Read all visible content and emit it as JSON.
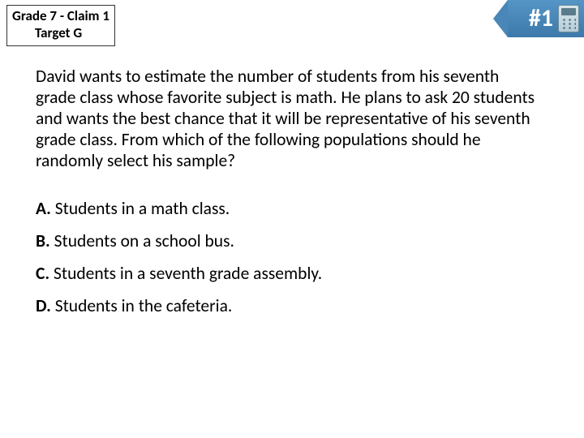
{
  "header": {
    "line1": "Grade 7 - Claim 1",
    "line2": "Target G"
  },
  "badge": {
    "number": "#1"
  },
  "question": "David wants to estimate the number of students from his seventh grade class whose favorite subject is math. He plans to ask 20 students and wants the best chance that it will be representative of his seventh grade class. From which of the following populations should he randomly select his sample?",
  "options": [
    {
      "letter": "A.",
      "text": " Students in a math class."
    },
    {
      "letter": "B.",
      "text": " Students on a school bus."
    },
    {
      "letter": "C.",
      "text": " Students in a seventh grade assembly."
    },
    {
      "letter": "D.",
      "text": " Students in the cafeteria."
    }
  ],
  "colors": {
    "badge_gradient_top": "#5595c6",
    "badge_gradient_bottom": "#3d79ab",
    "background": "#ffffff",
    "text": "#000000"
  },
  "typography": {
    "header_fontsize": 17,
    "body_fontsize": 21.5,
    "badge_fontsize": 30,
    "font_family": "Calibri"
  }
}
